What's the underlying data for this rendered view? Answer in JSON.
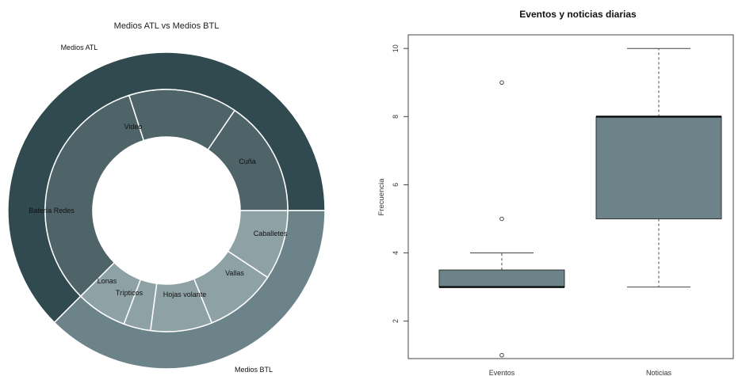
{
  "colors": {
    "atl_outer": "#304a4f",
    "atl_inner": "#4e6468",
    "btl_outer": "#6b8389",
    "btl_inner": "#8ea2a6",
    "box_fill": "#6b8389",
    "axis": "#444444"
  },
  "chart_data": [
    {
      "type": "pie",
      "subtype": "nested-donut",
      "title": "Medios ATL vs Medios BTL",
      "outer": {
        "labels": [
          "Medios ATL",
          "Medios BTL"
        ],
        "values": [
          62.5,
          37.5
        ]
      },
      "inner": {
        "labels": [
          "Cuña",
          "Video",
          "Batería Redes",
          "Lonas",
          "Trípticos",
          "Hojas volante",
          "Vallas",
          "Caballetes"
        ],
        "groups": [
          "Medios ATL",
          "Medios ATL",
          "Medios ATL",
          "Medios BTL",
          "Medios BTL",
          "Medios BTL",
          "Medios BTL",
          "Medios BTL"
        ],
        "values": [
          15.5,
          14.5,
          32.5,
          6.8,
          3.6,
          8.2,
          9.6,
          9.3
        ]
      }
    },
    {
      "type": "box",
      "title": "Eventos y noticias diarias",
      "xlabel": "",
      "ylabel": "Frecuencia",
      "ylim": [
        0.9,
        10.4
      ],
      "yticks": [
        2,
        4,
        6,
        8,
        10
      ],
      "categories": [
        "Eventos",
        "Noticias"
      ],
      "boxes": [
        {
          "name": "Eventos",
          "min": 3,
          "q1": 3,
          "median": 3,
          "q3": 3.5,
          "max": 4,
          "outliers": [
            9,
            5,
            1
          ]
        },
        {
          "name": "Noticias",
          "min": 3,
          "q1": 5,
          "median": 8,
          "q3": 8,
          "max": 10,
          "outliers": []
        }
      ]
    }
  ]
}
